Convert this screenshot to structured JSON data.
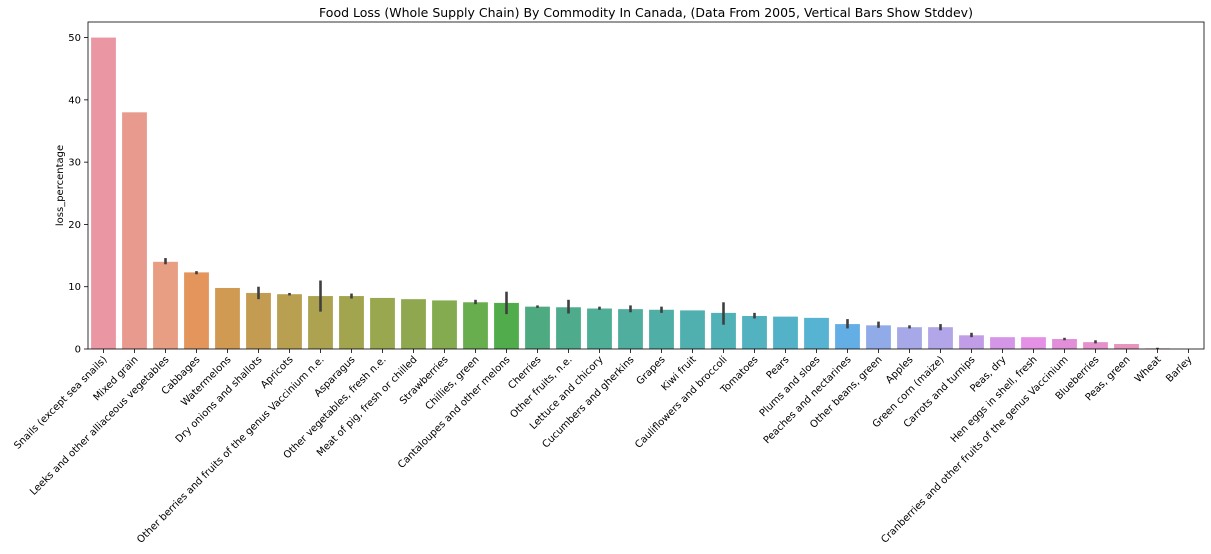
{
  "chart_data": {
    "type": "bar",
    "title": "Food Loss (Whole Supply Chain) By Commodity In Canada, (Data From 2005, Vertical Bars Show Stddev)",
    "xlabel": "",
    "ylabel": "loss_percentage",
    "ylim": [
      0,
      52.5
    ],
    "yticks": [
      0,
      10,
      20,
      30,
      40,
      50
    ],
    "grid": false,
    "categories": [
      "Snails (except sea snails)",
      "Mixed grain",
      "Leeks and other alliaceous vegetables",
      "Cabbages",
      "Watermelons",
      "Dry onions and shallots",
      "Apricots",
      "Other berries and fruits of the genus Vaccinium n.e.",
      "Asparagus",
      "Other vegetables, fresh n.e.",
      "Meat of pig, fresh or chilled",
      "Strawberries",
      "Chillies, green",
      "Cantaloupes and other melons",
      "Cherries",
      "Other fruits, n.e.",
      "Lettuce and chicory",
      "Cucumbers and gherkins",
      "Grapes",
      "Kiwi fruit",
      "Cauliflowers and broccoli",
      "Tomatoes",
      "Pears",
      "Plums and sloes",
      "Peaches and nectarines",
      "Other beans, green",
      "Apples",
      "Green corn (maize)",
      "Carrots and turnips",
      "Peas, dry",
      "Hen eggs in shell, fresh",
      "Cranberries and other fruits of the genus Vaccinium",
      "Blueberries",
      "Peas, green",
      "Wheat",
      "Barley"
    ],
    "values": [
      50.0,
      38.0,
      14.0,
      12.3,
      9.8,
      9.0,
      8.8,
      8.5,
      8.5,
      8.2,
      8.0,
      7.8,
      7.5,
      7.4,
      6.8,
      6.7,
      6.5,
      6.4,
      6.3,
      6.2,
      5.8,
      5.3,
      5.2,
      5.0,
      4.0,
      3.8,
      3.5,
      3.5,
      2.2,
      1.9,
      1.9,
      1.6,
      1.1,
      0.8,
      0.1,
      0.0
    ],
    "error_low": [
      null,
      null,
      13.6,
      12.0,
      null,
      8.0,
      8.6,
      6.0,
      8.1,
      null,
      null,
      null,
      7.2,
      5.6,
      6.6,
      5.7,
      6.3,
      5.9,
      5.8,
      null,
      3.9,
      4.9,
      null,
      null,
      3.3,
      3.4,
      3.3,
      3.0,
      1.9,
      null,
      null,
      1.4,
      0.9,
      null,
      0.0,
      null
    ],
    "error_high": [
      null,
      null,
      14.6,
      12.5,
      null,
      10.0,
      9.0,
      11.0,
      8.9,
      null,
      null,
      null,
      7.9,
      9.2,
      7.0,
      7.9,
      6.8,
      7.0,
      6.8,
      null,
      7.5,
      5.8,
      null,
      null,
      4.8,
      4.4,
      3.8,
      4.0,
      2.6,
      null,
      null,
      1.8,
      1.4,
      null,
      0.2,
      null
    ],
    "colors": [
      "#ea96a3",
      "#e99a8e",
      "#e79e82",
      "#e4955c",
      "#d09a52",
      "#c39c51",
      "#b8a050",
      "#ada24f",
      "#a3a44e",
      "#99a74f",
      "#8fa84f",
      "#84ab4f",
      "#68ae4e",
      "#51ad4c",
      "#4eab81",
      "#4eac8c",
      "#4eae96",
      "#4fae9e",
      "#4fafa6",
      "#50b0af",
      "#50b1b7",
      "#52b2bf",
      "#54b2c8",
      "#57b3d2",
      "#64aee6",
      "#91aae8",
      "#a6a8e8",
      "#b2a5e8",
      "#c19de8",
      "#d596e8",
      "#e491e5",
      "#e28ed9",
      "#e591cc",
      "#e794bf",
      "#e896b5",
      "#ea97ab"
    ]
  }
}
